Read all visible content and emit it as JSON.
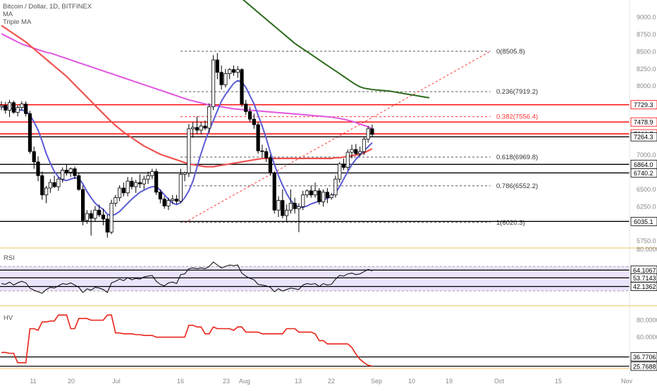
{
  "header": {
    "symbol": "Bitcoin / Dollar, 1D, BITFINEX",
    "indicator_1": "MA",
    "indicator_2": "Triple MA"
  },
  "colors": {
    "background": "#ffffff",
    "candle": "#000000",
    "candle_up_fill": "#ffffff",
    "candle_down_fill": "#000000",
    "ma_fast": "#5b5bd6",
    "ma_mid": "#ef5350",
    "ma_slow": "#e056e0",
    "ma_long": "#2e6b1e",
    "level_red": "#ff0000",
    "level_black": "#000000",
    "fib_line": "#555555",
    "fib_red": "#ff3333",
    "trend": "#ff3333",
    "rsi_band": "#ece4fb",
    "hv_line": "#e8241a",
    "separator": "#f0c060"
  },
  "chart_data": [
    {
      "type": "candlestick",
      "name": "price",
      "ylim": [
        5650,
        9250
      ],
      "y_ticks": [
        "9000.0",
        "8750.0",
        "8500.0",
        "8250.0",
        "8000.0",
        "7750.0",
        "7500.0",
        "7250.0",
        "7000.0",
        "6750.0",
        "6500.0",
        "6250.0",
        "6000.0",
        "5750.0"
      ],
      "x_ticks": [
        "11",
        "20",
        "Jul",
        "16",
        "23",
        "Aug",
        "13",
        "22",
        "Sep",
        "10",
        "19",
        "Oct",
        "15",
        "Nov"
      ],
      "candles": [
        [
          7700,
          7780,
          7650,
          7720
        ],
        [
          7720,
          7770,
          7600,
          7650
        ],
        [
          7650,
          7800,
          7550,
          7760
        ],
        [
          7760,
          7790,
          7600,
          7620
        ],
        [
          7620,
          7720,
          7560,
          7690
        ],
        [
          7690,
          7780,
          7650,
          7740
        ],
        [
          7740,
          7780,
          7560,
          7600
        ],
        [
          7600,
          7640,
          7020,
          7050
        ],
        [
          7050,
          7120,
          6800,
          6900
        ],
        [
          6900,
          6980,
          6620,
          6700
        ],
        [
          6700,
          6760,
          6350,
          6420
        ],
        [
          6420,
          6550,
          6300,
          6520
        ],
        [
          6520,
          6650,
          6450,
          6600
        ],
        [
          6600,
          6700,
          6520,
          6540
        ],
        [
          6540,
          6680,
          6480,
          6650
        ],
        [
          6650,
          6820,
          6600,
          6780
        ],
        [
          6780,
          6860,
          6700,
          6750
        ],
        [
          6750,
          6820,
          6680,
          6800
        ],
        [
          6800,
          6830,
          6650,
          6700
        ],
        [
          6700,
          6740,
          6480,
          6500
        ],
        [
          6500,
          6560,
          5980,
          6050
        ],
        [
          6050,
          6200,
          6000,
          6150
        ],
        [
          6150,
          6200,
          5830,
          6080
        ],
        [
          6080,
          6260,
          6030,
          6200
        ],
        [
          6200,
          6280,
          6100,
          6130
        ],
        [
          6130,
          6220,
          5980,
          6070
        ],
        [
          6070,
          6130,
          5800,
          5880
        ],
        [
          5880,
          6350,
          5850,
          6300
        ],
        [
          6300,
          6420,
          6250,
          6380
        ],
        [
          6380,
          6560,
          6330,
          6520
        ],
        [
          6520,
          6600,
          6400,
          6450
        ],
        [
          6450,
          6680,
          6400,
          6620
        ],
        [
          6620,
          6680,
          6500,
          6540
        ],
        [
          6540,
          6640,
          6450,
          6600
        ],
        [
          6600,
          6720,
          6520,
          6580
        ],
        [
          6580,
          6700,
          6500,
          6650
        ],
        [
          6650,
          6760,
          6580,
          6700
        ],
        [
          6700,
          6800,
          6650,
          6760
        ],
        [
          6760,
          6800,
          6420,
          6460
        ],
        [
          6460,
          6500,
          6300,
          6360
        ],
        [
          6360,
          6400,
          6220,
          6260
        ],
        [
          6260,
          6380,
          6200,
          6340
        ],
        [
          6340,
          6420,
          6290,
          6360
        ],
        [
          6360,
          6420,
          6290,
          6330
        ],
        [
          6330,
          6800,
          6300,
          6720
        ],
        [
          6720,
          6760,
          6620,
          6740
        ],
        [
          6740,
          7450,
          6680,
          7380
        ],
        [
          7380,
          7480,
          7250,
          7400
        ],
        [
          7400,
          7560,
          7300,
          7360
        ],
        [
          7360,
          7480,
          7300,
          7420
        ],
        [
          7420,
          7500,
          7360,
          7390
        ],
        [
          7390,
          7750,
          7320,
          7700
        ],
        [
          7700,
          8450,
          7650,
          8380
        ],
        [
          8380,
          8480,
          8100,
          8200
        ],
        [
          8200,
          8300,
          7950,
          8020
        ],
        [
          8020,
          8250,
          7980,
          8180
        ],
        [
          8180,
          8260,
          8100,
          8240
        ],
        [
          8240,
          8300,
          8150,
          8200
        ],
        [
          8200,
          8290,
          8120,
          8240
        ],
        [
          8240,
          8260,
          7700,
          7740
        ],
        [
          7740,
          7800,
          7580,
          7630
        ],
        [
          7630,
          7700,
          7480,
          7520
        ],
        [
          7520,
          7600,
          7380,
          7440
        ],
        [
          7440,
          7480,
          7020,
          7060
        ],
        [
          7060,
          7150,
          6980,
          7050
        ],
        [
          7050,
          7100,
          6900,
          6960
        ],
        [
          6960,
          7000,
          6700,
          6740
        ],
        [
          6740,
          6760,
          6150,
          6200
        ],
        [
          6200,
          6400,
          6100,
          6340
        ],
        [
          6340,
          6500,
          6080,
          6120
        ],
        [
          6120,
          6280,
          6030,
          6200
        ],
        [
          6200,
          6500,
          6150,
          6300
        ],
        [
          6300,
          6380,
          6150,
          6220
        ],
        [
          6220,
          6300,
          5880,
          6250
        ],
        [
          6250,
          6480,
          6200,
          6420
        ],
        [
          6420,
          6500,
          6380,
          6480
        ],
        [
          6480,
          6560,
          6380,
          6420
        ],
        [
          6420,
          6600,
          6380,
          6480
        ],
        [
          6480,
          6520,
          6280,
          6320
        ],
        [
          6320,
          6500,
          6250,
          6460
        ],
        [
          6460,
          6520,
          6300,
          6380
        ],
        [
          6380,
          6450,
          6350,
          6420
        ],
        [
          6420,
          6700,
          6380,
          6650
        ],
        [
          6650,
          6900,
          6600,
          6870
        ],
        [
          6870,
          6950,
          6780,
          6820
        ],
        [
          6820,
          7080,
          6780,
          7040
        ],
        [
          7040,
          7150,
          6950,
          7080
        ],
        [
          7080,
          7160,
          7000,
          7020
        ],
        [
          7020,
          7120,
          6980,
          7050
        ],
        [
          7050,
          7260,
          7000,
          7230
        ],
        [
          7230,
          7420,
          7180,
          7380
        ],
        [
          7380,
          7440,
          7260,
          7300
        ]
      ],
      "ma_series": {
        "fast": [
          7700,
          7690,
          7680,
          7670,
          7660,
          7650,
          7640,
          7580,
          7480,
          7360,
          7200,
          7020,
          6880,
          6760,
          6680,
          6640,
          6630,
          6650,
          6670,
          6660,
          6580,
          6470,
          6380,
          6300,
          6250,
          6210,
          6140,
          6120,
          6140,
          6180,
          6240,
          6300,
          6360,
          6410,
          6460,
          6490,
          6520,
          6540,
          6540,
          6490,
          6420,
          6360,
          6300,
          6280,
          6310,
          6380,
          6480,
          6620,
          6820,
          7020,
          7200,
          7360,
          7500,
          7640,
          7780,
          7880,
          7960,
          8040,
          8080,
          8060,
          7980,
          7860,
          7740,
          7580,
          7420,
          7240,
          7040,
          6860,
          6700,
          6560,
          6440,
          6340,
          6280,
          6240,
          6240,
          6260,
          6290,
          6310,
          6330,
          6350,
          6370,
          6400,
          6450,
          6540,
          6650,
          6760,
          6860,
          6940,
          7000,
          7060,
          7120,
          7180
        ],
        "mid": [
          8880,
          8840,
          8800,
          8760,
          8720,
          8680,
          8640,
          8590,
          8540,
          8490,
          8440,
          8390,
          8340,
          8290,
          8240,
          8190,
          8140,
          8080,
          8020,
          7960,
          7900,
          7840,
          7780,
          7720,
          7660,
          7600,
          7540,
          7480,
          7430,
          7380,
          7330,
          7290,
          7250,
          7210,
          7170,
          7130,
          7100,
          7070,
          7040,
          7010,
          6990,
          6970,
          6950,
          6930,
          6910,
          6890,
          6870,
          6860,
          6850,
          6840,
          6830,
          6830,
          6830,
          6840,
          6850,
          6860,
          6870,
          6880,
          6890,
          6900,
          6910,
          6920,
          6930,
          6940,
          6950,
          6950,
          6950,
          6950,
          6950,
          6950,
          6950,
          6950,
          6950,
          6950,
          6950,
          6950,
          6950,
          6950,
          6950,
          6950,
          6950,
          6950,
          6960,
          6960,
          6970,
          6980,
          6990,
          7000,
          7010,
          7030,
          7060,
          7090
        ],
        "slow": [
          8760,
          8730,
          8700,
          8670,
          8640,
          8610,
          8590,
          8570,
          8550,
          8530,
          8510,
          8490,
          8480,
          8460,
          8440,
          8420,
          8400,
          8380,
          8360,
          8340,
          8320,
          8300,
          8280,
          8260,
          8240,
          8220,
          8200,
          8180,
          8160,
          8140,
          8120,
          8100,
          8080,
          8060,
          8040,
          8020,
          8000,
          7980,
          7960,
          7940,
          7920,
          7900,
          7880,
          7860,
          7840,
          7820,
          7800,
          7785,
          7770,
          7755,
          7740,
          7730,
          7720,
          7710,
          7700,
          7690,
          7680,
          7670,
          7665,
          7660,
          7655,
          7650,
          7645,
          7640,
          7635,
          7630,
          7625,
          7620,
          7615,
          7610,
          7605,
          7600,
          7595,
          7590,
          7585,
          7580,
          7575,
          7570,
          7565,
          7560,
          7555,
          7550,
          7540,
          7530,
          7520,
          7505,
          7490,
          7470,
          7450,
          7430,
          7410,
          7380
        ],
        "long_start": 58,
        "long": [
          9320,
          9270,
          9220,
          9170,
          9120,
          9070,
          9020,
          8970,
          8920,
          8870,
          8820,
          8770,
          8720,
          8670,
          8620,
          8580,
          8540,
          8500,
          8460,
          8420,
          8380,
          8340,
          8300,
          8260,
          8220,
          8180,
          8140,
          8100,
          8060,
          8020,
          7990,
          7970,
          7960,
          7950,
          7945,
          7940,
          7935,
          7930,
          7920,
          7910,
          7900,
          7890,
          7880,
          7870,
          7860,
          7850,
          7840,
          7830
        ]
      },
      "long_ma_domain_note": "",
      "horizontal_levels": [
        {
          "price": 7729.3,
          "label": "7729.3",
          "color": "red"
        },
        {
          "price": 7478.9,
          "label": "7478.9",
          "color": "red"
        },
        {
          "price": 7306.7,
          "label": "7306.7",
          "color": "red"
        },
        {
          "price": 7264.3,
          "label": "7264.3",
          "color": "black"
        },
        {
          "price": 6864.0,
          "label": "6864.0",
          "color": "black"
        },
        {
          "price": 6740.2,
          "label": "6740.2",
          "color": "black"
        },
        {
          "price": 6035.1,
          "label": "6035.1",
          "color": "black"
        }
      ],
      "fib_levels": [
        {
          "label": "0(8505.8)",
          "price": 8505.8,
          "red": false
        },
        {
          "label": "0.236(7919.2)",
          "price": 7919.2,
          "red": false
        },
        {
          "label": "0.382(7556.4)",
          "price": 7556.4,
          "red": true
        },
        {
          "label": "0.618(6969.8)",
          "price": 6969.8,
          "red": false
        },
        {
          "label": "0.786(6552.2)",
          "price": 6552.2,
          "red": false
        },
        {
          "label": "1(6020.3)",
          "price": 6020.3,
          "red": false
        }
      ],
      "trend_line": {
        "from": [
          6020.3
        ],
        "to": [
          8505.8
        ]
      }
    },
    {
      "type": "line",
      "name": "RSI",
      "label": "RSI",
      "ylim": [
        20,
        90
      ],
      "band": [
        36,
        69
      ],
      "levels": [
        {
          "value": 64.1067,
          "label": "64.1067"
        },
        {
          "value": 53.7143,
          "label": "53.7143"
        },
        {
          "value": 42.1362,
          "label": "42.1362"
        }
      ],
      "top_tick": "80.0000",
      "values": [
        46,
        45,
        48,
        44,
        47,
        49,
        47,
        40,
        37,
        35,
        33,
        38,
        41,
        40,
        43,
        46,
        45,
        47,
        44,
        41,
        34,
        39,
        37,
        41,
        40,
        38,
        34,
        47,
        49,
        52,
        50,
        54,
        51,
        53,
        52,
        55,
        56,
        57,
        49,
        45,
        43,
        47,
        48,
        46,
        58,
        59,
        66,
        67,
        66,
        67,
        66,
        69,
        75,
        71,
        67,
        69,
        71,
        70,
        71,
        60,
        56,
        53,
        51,
        45,
        44,
        43,
        41,
        35,
        39,
        36,
        38,
        40,
        39,
        38,
        44,
        46,
        45,
        46,
        42,
        46,
        44,
        45,
        52,
        57,
        56,
        59,
        60,
        58,
        59,
        62,
        65,
        63
      ]
    },
    {
      "type": "line",
      "name": "HV",
      "label": "HV",
      "ylim": [
        24,
        92
      ],
      "levels": [
        {
          "value": 36.7706,
          "label": "36.7706"
        },
        {
          "value": 25.7688,
          "label": "25.7688"
        }
      ],
      "ticks": [
        {
          "value": 80,
          "label": "80.0000"
        },
        {
          "value": 60,
          "label": "60.0000"
        }
      ],
      "values": [
        42,
        42,
        41,
        41,
        30,
        30,
        30,
        70,
        70,
        68,
        78,
        78,
        79,
        79,
        86,
        86,
        86,
        70,
        70,
        82,
        82,
        82,
        80,
        80,
        80,
        80,
        86,
        86,
        65,
        65,
        64,
        64,
        64,
        63,
        63,
        62,
        62,
        62,
        60,
        60,
        60,
        60,
        60,
        60,
        60,
        60,
        74,
        74,
        72,
        72,
        64,
        64,
        72,
        70,
        70,
        70,
        70,
        68,
        72,
        72,
        66,
        66,
        66,
        66,
        64,
        64,
        64,
        64,
        64,
        64,
        70,
        70,
        70,
        66,
        66,
        66,
        66,
        64,
        56,
        56,
        52,
        52,
        52,
        52,
        52,
        52,
        48,
        40,
        34,
        30,
        27,
        26
      ]
    }
  ]
}
